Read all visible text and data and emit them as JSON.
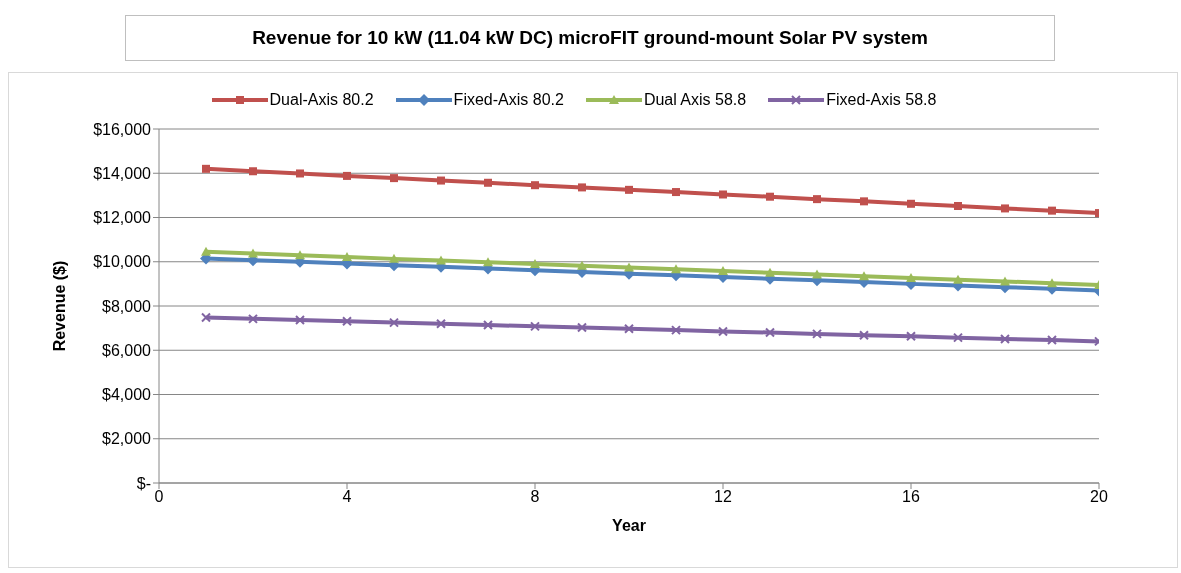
{
  "chart_data": {
    "type": "line",
    "title": "Revenue for 10 kW (11.04 kW DC) microFIT ground-mount Solar PV system",
    "xlabel": "Year",
    "ylabel": "Revenue ($)",
    "x": [
      1,
      2,
      3,
      4,
      5,
      6,
      7,
      8,
      9,
      10,
      11,
      12,
      13,
      14,
      15,
      16,
      17,
      18,
      19,
      20
    ],
    "series": [
      {
        "name": "Dual-Axis 80.2",
        "color": "#c0504d",
        "marker": "square",
        "values": [
          14200,
          14090,
          13990,
          13880,
          13780,
          13670,
          13570,
          13460,
          13360,
          13250,
          13150,
          13040,
          12940,
          12830,
          12730,
          12620,
          12520,
          12410,
          12310,
          12200
        ]
      },
      {
        "name": "Fixed-Axis 80.2",
        "color": "#4f81bd",
        "marker": "diamond",
        "values": [
          10150,
          10070,
          10000,
          9920,
          9840,
          9770,
          9690,
          9620,
          9540,
          9460,
          9390,
          9310,
          9230,
          9160,
          9080,
          9000,
          8930,
          8850,
          8780,
          8700
        ]
      },
      {
        "name": "Dual Axis 58.8",
        "color": "#9bbb59",
        "marker": "triangle",
        "values": [
          10450,
          10370,
          10290,
          10210,
          10130,
          10060,
          9980,
          9900,
          9820,
          9740,
          9660,
          9580,
          9500,
          9420,
          9350,
          9270,
          9190,
          9110,
          9030,
          8950
        ]
      },
      {
        "name": "Fixed-Axis 58.8",
        "color": "#8064a2",
        "marker": "cross",
        "values": [
          7480,
          7420,
          7370,
          7310,
          7250,
          7200,
          7140,
          7080,
          7030,
          6970,
          6910,
          6850,
          6800,
          6740,
          6680,
          6630,
          6570,
          6510,
          6460,
          6400
        ]
      }
    ],
    "xlim": [
      0,
      20
    ],
    "xticks": [
      0,
      4,
      8,
      12,
      16,
      20
    ],
    "ylim": [
      0,
      16000
    ],
    "yticks": [
      {
        "value": 0,
        "label": "$-"
      },
      {
        "value": 2000,
        "label": "$2,000"
      },
      {
        "value": 4000,
        "label": "$4,000"
      },
      {
        "value": 6000,
        "label": "$6,000"
      },
      {
        "value": 8000,
        "label": "$8,000"
      },
      {
        "value": 10000,
        "label": "$10,000"
      },
      {
        "value": 12000,
        "label": "$12,000"
      },
      {
        "value": 14000,
        "label": "$14,000"
      },
      {
        "value": 16000,
        "label": "$16,000"
      }
    ],
    "grid": "y",
    "legend": "top",
    "line_style": "solid"
  }
}
